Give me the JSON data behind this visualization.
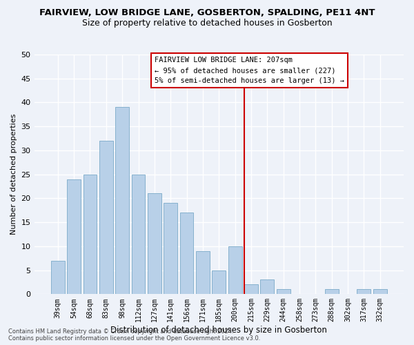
{
  "title": "FAIRVIEW, LOW BRIDGE LANE, GOSBERTON, SPALDING, PE11 4NT",
  "subtitle": "Size of property relative to detached houses in Gosberton",
  "xlabel": "Distribution of detached houses by size in Gosberton",
  "ylabel": "Number of detached properties",
  "categories": [
    "39sqm",
    "54sqm",
    "68sqm",
    "83sqm",
    "98sqm",
    "112sqm",
    "127sqm",
    "141sqm",
    "156sqm",
    "171sqm",
    "185sqm",
    "200sqm",
    "215sqm",
    "229sqm",
    "244sqm",
    "258sqm",
    "273sqm",
    "288sqm",
    "302sqm",
    "317sqm",
    "332sqm"
  ],
  "values": [
    7,
    24,
    25,
    32,
    39,
    25,
    21,
    19,
    17,
    9,
    5,
    10,
    2,
    3,
    1,
    0,
    0,
    1,
    0,
    1,
    1
  ],
  "bar_color": "#b8d0e8",
  "bar_edge_color": "#7aaac8",
  "annotation_line0": "FAIRVIEW LOW BRIDGE LANE: 207sqm",
  "annotation_line1": "← 95% of detached houses are smaller (227)",
  "annotation_line2": "5% of semi-detached houses are larger (13) →",
  "vline_category_index": 11.57,
  "ylim": [
    0,
    50
  ],
  "yticks": [
    0,
    5,
    10,
    15,
    20,
    25,
    30,
    35,
    40,
    45,
    50
  ],
  "footer_line1": "Contains HM Land Registry data © Crown copyright and database right 2024.",
  "footer_line2": "Contains public sector information licensed under the Open Government Licence v3.0.",
  "bg_color": "#eef2f9",
  "grid_color": "#ffffff",
  "title_fontsize": 9.5,
  "subtitle_fontsize": 9,
  "annotation_box_color": "#cc0000",
  "vline_color": "#cc0000",
  "figwidth": 6.0,
  "figheight": 5.0,
  "dpi": 100
}
